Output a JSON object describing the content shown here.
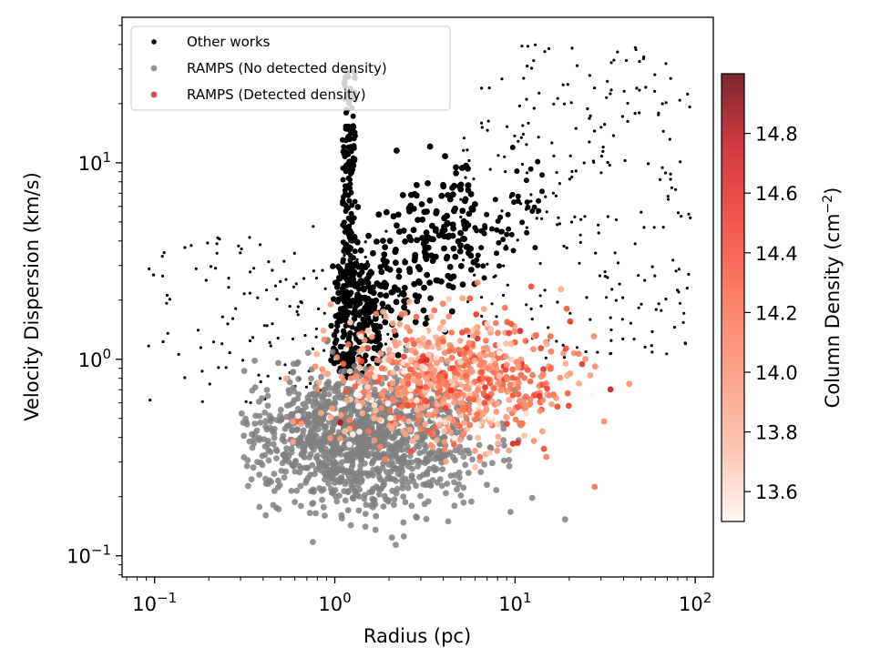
{
  "chart_data": {
    "type": "scatter",
    "title": "",
    "xlabel": "Radius (pc)",
    "ylabel": "Velocity Dispersion (km/s)",
    "xscale": "log",
    "yscale": "log",
    "xlim": [
      0.066,
      126
    ],
    "ylim": [
      0.078,
      55
    ],
    "x_ticks": [
      {
        "value": 0.1,
        "base": "10",
        "exp": "−1"
      },
      {
        "value": 1,
        "base": "10",
        "exp": "0"
      },
      {
        "value": 10,
        "base": "10",
        "exp": "1"
      },
      {
        "value": 100,
        "base": "10",
        "exp": "2"
      }
    ],
    "y_ticks": [
      {
        "value": 0.1,
        "base": "10",
        "exp": "−1"
      },
      {
        "value": 1,
        "base": "10",
        "exp": "0"
      },
      {
        "value": 10,
        "base": "10",
        "exp": "1"
      }
    ],
    "grid": false,
    "legend": {
      "position": "top-left",
      "entries": [
        {
          "label": "Other works",
          "color": "#000000"
        },
        {
          "label": "RAMPS (No detected density)",
          "color": "#808080"
        },
        {
          "label": "RAMPS (Detected density)",
          "color": "#cd2f2f"
        }
      ]
    },
    "colorbar": {
      "label_main": "Column Density (cm",
      "label_exp": "−2",
      "label_close": ")",
      "range": [
        13.5,
        15.0
      ],
      "ticks": [
        "13.6",
        "13.8",
        "14.0",
        "14.2",
        "14.4",
        "14.6",
        "14.8"
      ],
      "colormap": [
        "#fff5f0",
        "#fcbba1",
        "#fc9272",
        "#fb6a4a",
        "#ef3b2c",
        "#cb181d",
        "#67000d"
      ]
    },
    "series": [
      {
        "name": "Other works",
        "color": "#000000",
        "clusters": [
          {
            "xr": [
              0.09,
              0.9
            ],
            "yr": [
              0.6,
              4.5
            ],
            "n": 90,
            "size": 1.6
          },
          {
            "xr": [
              0.35,
              2.5
            ],
            "yr": [
              1.0,
              5.0
            ],
            "n": 40,
            "size": 1.6
          },
          {
            "xr": [
              5,
              95
            ],
            "yr": [
              1.0,
              40
            ],
            "n": 260,
            "size": 1.6
          },
          {
            "xr": [
              1.1,
              1.3
            ],
            "yr": [
              0.8,
              30
            ],
            "n": 260,
            "size": 3.0
          },
          {
            "xr": [
              0.95,
              1.8
            ],
            "yr": [
              0.85,
              3.0
            ],
            "n": 150,
            "size": 3.2
          },
          {
            "trend": true,
            "xr": [
              1.3,
              6
            ],
            "n": 260,
            "size": 3.4,
            "a": 1.5,
            "b": 0.75,
            "spread": 0.18
          },
          {
            "trend": true,
            "xr": [
              6,
              15
            ],
            "n": 50,
            "size": 3.0,
            "a": 0.95,
            "b": 0.75,
            "spread": 0.12
          }
        ]
      },
      {
        "name": "RAMPS (No detected density)",
        "color": "#808080",
        "clusters": [
          {
            "xr": [
              0.3,
              20
            ],
            "yr": [
              0.1,
              1.35
            ],
            "n": 1300,
            "size": 3.4,
            "cx": 1.4,
            "cy": 0.4
          }
        ]
      },
      {
        "name": "RAMPS (Detected density)",
        "color": "#cd2f2f",
        "clusters": [
          {
            "xr": [
              0.4,
              55
            ],
            "yr": [
              0.14,
              4.8
            ],
            "n": 800,
            "size": 3.4,
            "cx": 4.5,
            "cy": 0.75
          }
        ]
      }
    ]
  }
}
